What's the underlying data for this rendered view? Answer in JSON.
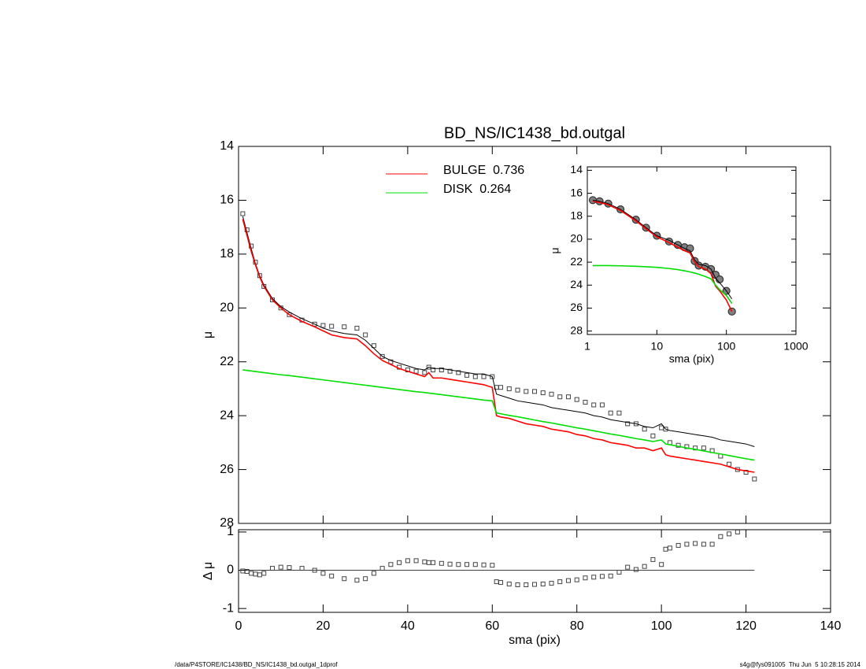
{
  "chart_data": [
    {
      "type": "line",
      "title": "BD_NS/IC1438_bd.outgal",
      "ylabel": "μ",
      "x": [
        1,
        2,
        3,
        4,
        5,
        6,
        8,
        10,
        12,
        15,
        18,
        20,
        22,
        25,
        28,
        30,
        32,
        34,
        36,
        38,
        40,
        42,
        44,
        45,
        46,
        48,
        50,
        52,
        54,
        56,
        58,
        60,
        61,
        62,
        64,
        66,
        68,
        70,
        72,
        74,
        76,
        78,
        80,
        82,
        84,
        86,
        88,
        90,
        92,
        94,
        96,
        98,
        100,
        101,
        102,
        104,
        106,
        108,
        110,
        112,
        114,
        116,
        118,
        120,
        122
      ],
      "xlim": [
        0,
        140
      ],
      "xticks": [
        0,
        20,
        40,
        60,
        80,
        100,
        120,
        140
      ],
      "ylim": [
        28,
        14
      ],
      "yticks": [
        14,
        16,
        18,
        20,
        22,
        24,
        26,
        28
      ],
      "series": [
        {
          "style": "markers",
          "color": "#444444",
          "values": [
            16.5,
            17.1,
            17.7,
            18.3,
            18.8,
            19.2,
            19.7,
            20.0,
            20.25,
            20.45,
            20.6,
            20.65,
            20.68,
            20.7,
            20.75,
            21.0,
            21.4,
            21.8,
            22.0,
            22.2,
            22.3,
            22.35,
            22.4,
            22.2,
            22.3,
            22.3,
            22.35,
            22.4,
            22.5,
            22.55,
            22.55,
            22.55,
            22.95,
            22.95,
            23.0,
            23.05,
            23.1,
            23.1,
            23.15,
            23.2,
            23.3,
            23.3,
            23.4,
            23.5,
            23.6,
            23.6,
            23.9,
            23.9,
            24.3,
            24.3,
            24.5,
            24.75,
            24.45,
            24.5,
            25.0,
            25.1,
            25.15,
            25.2,
            25.2,
            25.3,
            25.5,
            25.8,
            26.0,
            26.1,
            26.35
          ]
        },
        {
          "color": "#000000",
          "values": [
            16.6,
            17.2,
            17.8,
            18.35,
            18.8,
            19.15,
            19.65,
            19.95,
            20.15,
            20.4,
            20.6,
            20.75,
            20.85,
            20.95,
            21.0,
            21.2,
            21.5,
            21.8,
            21.95,
            22.05,
            22.15,
            22.25,
            22.3,
            22.2,
            22.25,
            22.25,
            22.3,
            22.35,
            22.4,
            22.45,
            22.45,
            22.55,
            23.2,
            23.25,
            23.35,
            23.45,
            23.5,
            23.55,
            23.6,
            23.7,
            23.75,
            23.8,
            23.85,
            23.9,
            24.0,
            24.05,
            24.15,
            24.2,
            24.25,
            24.3,
            24.4,
            24.45,
            24.3,
            24.5,
            24.55,
            24.6,
            24.65,
            24.7,
            24.75,
            24.8,
            24.9,
            24.95,
            25.0,
            25.05,
            25.15
          ]
        },
        {
          "name": "BULGE  0.736",
          "color": "#ff0000",
          "values": [
            16.7,
            17.3,
            17.9,
            18.4,
            18.85,
            19.2,
            19.7,
            20.0,
            20.25,
            20.5,
            20.7,
            20.85,
            21.0,
            21.1,
            21.15,
            21.4,
            21.7,
            21.95,
            22.1,
            22.25,
            22.35,
            22.45,
            22.55,
            22.4,
            22.6,
            22.6,
            22.65,
            22.7,
            22.75,
            22.8,
            22.85,
            22.95,
            24.0,
            24.05,
            24.1,
            24.2,
            24.3,
            24.35,
            24.4,
            24.5,
            24.55,
            24.6,
            24.7,
            24.75,
            24.85,
            24.9,
            25.0,
            25.05,
            25.1,
            25.2,
            25.2,
            25.3,
            25.2,
            25.45,
            25.5,
            25.55,
            25.6,
            25.65,
            25.7,
            25.75,
            25.8,
            25.9,
            26.0,
            26.05,
            26.1
          ]
        },
        {
          "name": "DISK  0.264",
          "color": "#00dd00",
          "values": [
            22.3,
            22.32,
            22.34,
            22.36,
            22.38,
            22.4,
            22.44,
            22.48,
            22.51,
            22.57,
            22.63,
            22.67,
            22.71,
            22.77,
            22.83,
            22.87,
            22.91,
            22.95,
            22.99,
            23.03,
            23.07,
            23.11,
            23.14,
            23.16,
            23.18,
            23.22,
            23.26,
            23.3,
            23.34,
            23.38,
            23.42,
            23.45,
            23.9,
            23.93,
            23.99,
            24.04,
            24.1,
            24.16,
            24.22,
            24.27,
            24.33,
            24.39,
            24.45,
            24.5,
            24.56,
            24.62,
            24.68,
            24.73,
            24.79,
            24.85,
            24.9,
            24.96,
            24.9,
            25.05,
            25.08,
            25.14,
            25.2,
            25.25,
            25.31,
            25.37,
            25.42,
            25.48,
            25.54,
            25.6,
            25.65
          ]
        }
      ]
    },
    {
      "type": "line",
      "xscale": "log",
      "xlabel": "sma (pix)",
      "ylabel": "μ",
      "x": [
        1.2,
        1.5,
        2,
        3,
        5,
        7,
        10,
        15,
        20,
        25,
        30,
        35,
        40,
        50,
        60,
        70,
        80,
        100,
        120
      ],
      "xlim": [
        1,
        1000
      ],
      "xticks": [
        1,
        10,
        100,
        1000
      ],
      "ylim": [
        28.3,
        13.7
      ],
      "yticks": [
        14,
        16,
        18,
        20,
        22,
        24,
        26,
        28
      ],
      "series": [
        {
          "style": "markers",
          "color": "#808080",
          "values": [
            16.6,
            16.7,
            16.9,
            17.4,
            18.3,
            19.0,
            19.7,
            20.2,
            20.5,
            20.7,
            20.8,
            21.9,
            22.3,
            22.4,
            22.6,
            23.1,
            23.5,
            24.5,
            26.3
          ]
        },
        {
          "color": "#000000",
          "values": [
            16.6,
            16.7,
            16.9,
            17.4,
            18.3,
            19.0,
            19.7,
            20.1,
            20.5,
            20.8,
            21.0,
            21.8,
            22.2,
            22.3,
            22.6,
            23.4,
            23.8,
            24.5,
            25.2
          ]
        },
        {
          "color": "#ff0000",
          "values": [
            16.7,
            16.8,
            17.0,
            17.5,
            18.4,
            19.1,
            19.8,
            20.3,
            20.7,
            21.0,
            21.2,
            22.0,
            22.4,
            22.6,
            23.0,
            24.1,
            24.5,
            25.3,
            26.3
          ]
        },
        {
          "color": "#00dd00",
          "values": [
            22.3,
            22.3,
            22.3,
            22.32,
            22.36,
            22.4,
            22.45,
            22.55,
            22.65,
            22.75,
            22.85,
            22.95,
            23.05,
            23.25,
            23.45,
            24.0,
            24.4,
            24.9,
            25.6
          ]
        }
      ]
    },
    {
      "type": "scatter",
      "xlabel": "sma (pix)",
      "ylabel": "Δ μ",
      "x": [
        1,
        2,
        3,
        4,
        5,
        6,
        8,
        10,
        12,
        15,
        18,
        20,
        22,
        25,
        28,
        30,
        32,
        34,
        36,
        38,
        40,
        42,
        44,
        45,
        46,
        48,
        50,
        52,
        54,
        56,
        58,
        60,
        61,
        62,
        64,
        66,
        68,
        70,
        72,
        74,
        76,
        78,
        80,
        82,
        84,
        86,
        88,
        90,
        92,
        94,
        96,
        98,
        100,
        101,
        102,
        104,
        106,
        108,
        110,
        112,
        114,
        116,
        118,
        120,
        122
      ],
      "xlim": [
        0,
        140
      ],
      "xticks": [
        0,
        20,
        40,
        60,
        80,
        100,
        120,
        140
      ],
      "ylim": [
        -1.1,
        1.06
      ],
      "yticks": [
        -1,
        0,
        1
      ],
      "series": [
        {
          "color": "#444444",
          "values": [
            -0.02,
            -0.03,
            -0.08,
            -0.1,
            -0.12,
            -0.08,
            0.05,
            0.08,
            0.07,
            0.05,
            0.0,
            -0.08,
            -0.15,
            -0.22,
            -0.26,
            -0.22,
            -0.08,
            0.05,
            0.15,
            0.2,
            0.25,
            0.25,
            0.22,
            0.2,
            0.2,
            0.18,
            0.16,
            0.15,
            0.15,
            0.15,
            0.14,
            0.13,
            -0.3,
            -0.32,
            -0.36,
            -0.38,
            -0.38,
            -0.37,
            -0.36,
            -0.34,
            -0.3,
            -0.27,
            -0.25,
            -0.2,
            -0.18,
            -0.16,
            -0.15,
            -0.05,
            0.08,
            0.02,
            0.1,
            0.28,
            0.15,
            0.55,
            0.58,
            0.65,
            0.68,
            0.7,
            0.68,
            0.68,
            0.88,
            0.95,
            1.0,
            null,
            null
          ]
        }
      ]
    }
  ],
  "footer": {
    "left": "/data/P4STORE/IC1438/BD_NS/IC1438_bd.outgal_1dprof",
    "right": "s4g@fys091005  Thu Jun  5 10:28:15 2014"
  }
}
